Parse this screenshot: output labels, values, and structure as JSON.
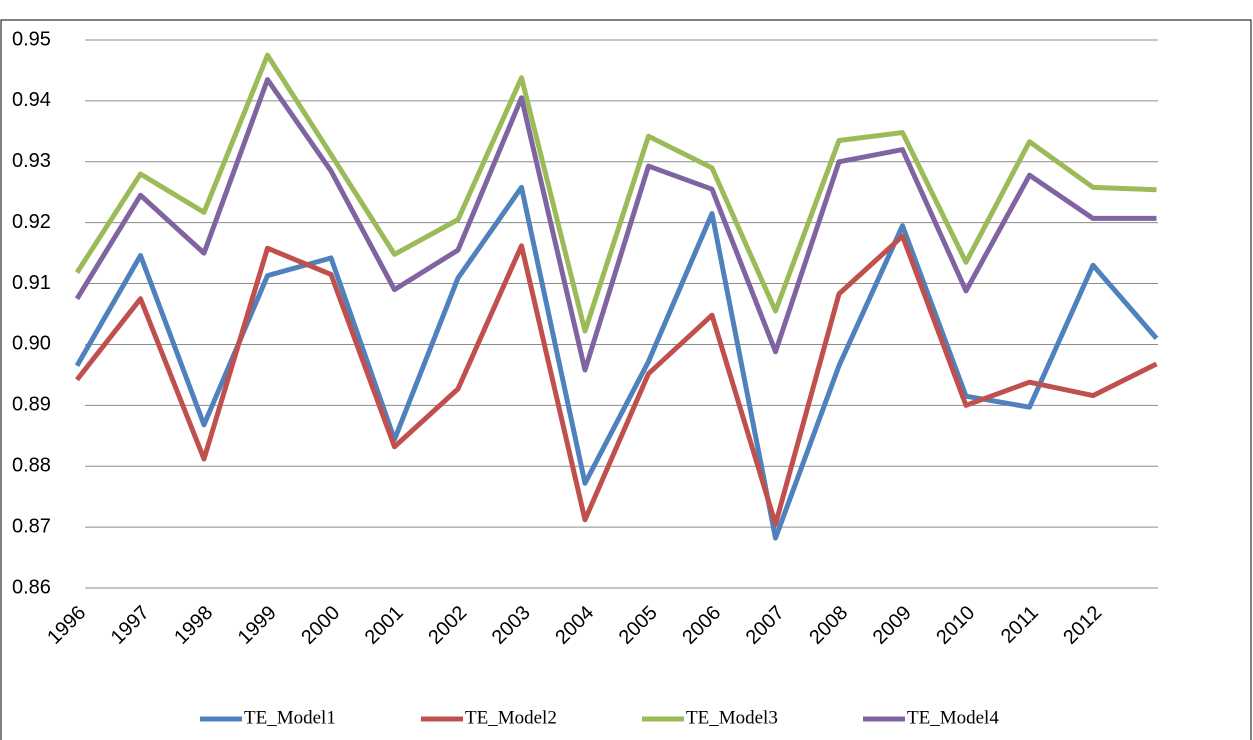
{
  "chart_data": {
    "type": "line",
    "categories": [
      "1996",
      "1997",
      "1998",
      "1999",
      "2000",
      "2001",
      "2002",
      "2003",
      "2004",
      "2005",
      "2006",
      "2007",
      "2008",
      "2009",
      "2010",
      "2011",
      "2012",
      null
    ],
    "series": [
      {
        "name": "TE_Model1",
        "color": "#4f81bd",
        "values": [
          0.8965,
          0.9146,
          0.8868,
          0.9113,
          0.9142,
          0.8844,
          0.9109,
          0.9258,
          0.8772,
          0.8972,
          0.9215,
          0.8682,
          0.8965,
          0.9195,
          0.8915,
          0.8897,
          0.913,
          0.901
        ]
      },
      {
        "name": "TE_Model2",
        "color": "#c0504d",
        "values": [
          0.8942,
          0.9075,
          0.8812,
          0.9158,
          0.9115,
          0.8832,
          0.8927,
          0.9162,
          0.8712,
          0.8952,
          0.9048,
          0.8705,
          0.9083,
          0.9178,
          0.89,
          0.8938,
          0.8916,
          0.8968
        ]
      },
      {
        "name": "TE_Model3",
        "color": "#9bbb59",
        "values": [
          0.9118,
          0.928,
          0.9217,
          0.9475,
          0.9312,
          0.9148,
          0.9205,
          0.9438,
          0.9022,
          0.9342,
          0.929,
          0.9055,
          0.9335,
          0.9348,
          0.9135,
          0.9333,
          0.9258,
          0.9254
        ]
      },
      {
        "name": "TE_Model4",
        "color": "#8064a2",
        "values": [
          0.9075,
          0.9245,
          0.915,
          0.9435,
          0.9285,
          0.909,
          0.9155,
          0.9405,
          0.8958,
          0.9293,
          0.9255,
          0.8988,
          0.93,
          0.932,
          0.9088,
          0.9278,
          0.9207,
          0.9207
        ]
      }
    ],
    "ylim": [
      0.86,
      0.95
    ],
    "yticks": [
      0.86,
      0.87,
      0.88,
      0.89,
      {
        "value": 0.9,
        "label": "0.90"
      },
      0.91,
      0.92,
      0.93,
      0.94,
      0.95
    ],
    "grid": true,
    "legend": "bottom"
  }
}
